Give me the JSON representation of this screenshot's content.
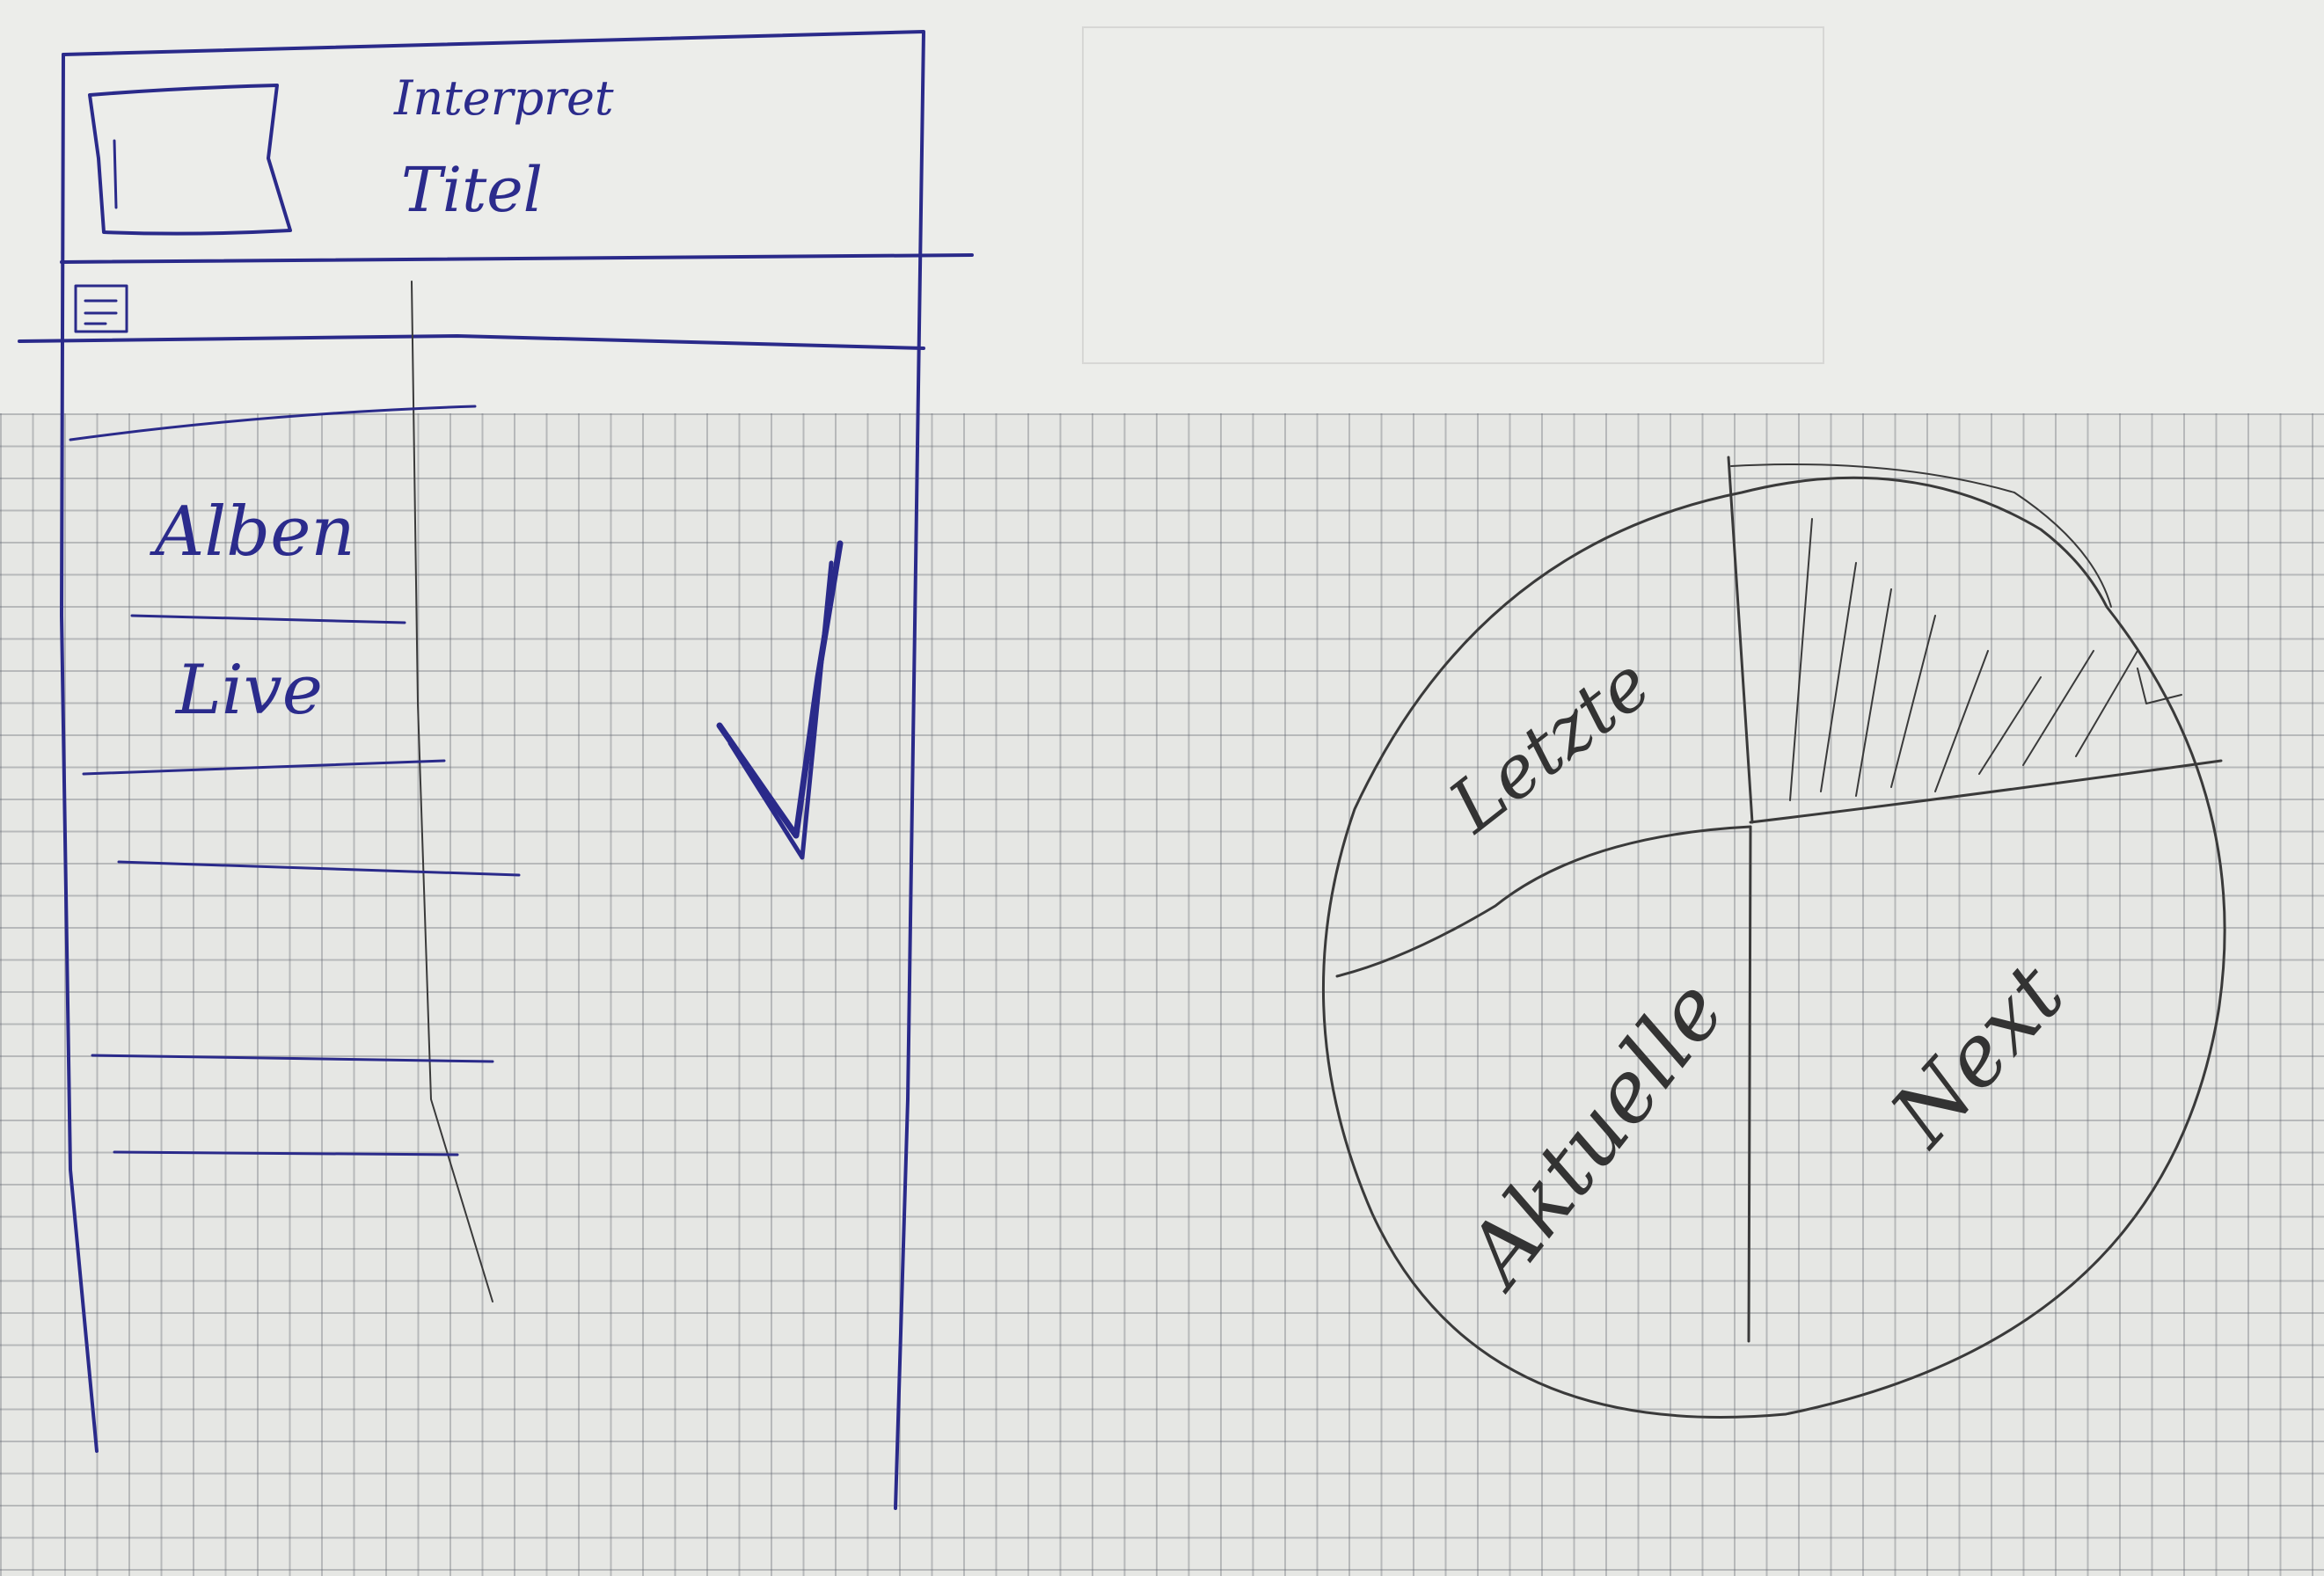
{
  "wireframe": {
    "header": {
      "artist_label": "Interpret",
      "title_label": "Titel"
    },
    "menu": {
      "items": [
        "Alben",
        "Live"
      ]
    }
  },
  "wheel": {
    "segments": [
      "Letzte",
      "Aktuelle",
      "Next"
    ]
  },
  "colors": {
    "ink": "#2a2a8a",
    "pencil": "#3a3a3a",
    "paper": "#e8e9e6"
  },
  "icons": [
    "album-art-placeholder",
    "menu-icon",
    "checkmark-icon"
  ]
}
